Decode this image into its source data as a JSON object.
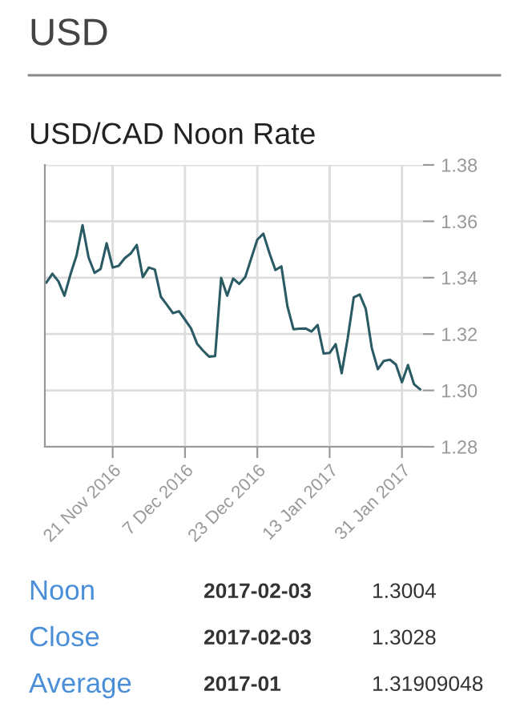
{
  "chart_data": {
    "type": "line",
    "title": "USD",
    "subtitle": "USD/CAD Noon Rate",
    "categories": [
      null,
      null,
      null,
      null,
      null,
      null,
      null,
      null,
      null,
      null,
      null,
      "21 Nov 2016",
      null,
      null,
      null,
      null,
      null,
      null,
      null,
      null,
      null,
      null,
      null,
      "7 Dec 2016",
      null,
      null,
      null,
      null,
      null,
      null,
      null,
      null,
      null,
      null,
      null,
      "23 Dec 2016",
      null,
      null,
      null,
      null,
      null,
      null,
      null,
      null,
      null,
      null,
      null,
      "13 Jan 2017",
      null,
      null,
      null,
      null,
      null,
      null,
      null,
      null,
      null,
      null,
      null,
      "31 Jan 2017",
      null,
      null,
      null
    ],
    "series": [
      {
        "color": "#2a5a63",
        "values": [
          1.3383,
          1.3414,
          1.3387,
          1.3336,
          1.3412,
          1.3478,
          1.3586,
          1.3472,
          1.3417,
          1.3431,
          1.3522,
          1.3436,
          1.3442,
          1.3469,
          1.3486,
          1.3516,
          1.3402,
          1.3436,
          1.3429,
          1.3332,
          1.3304,
          1.3274,
          1.3281,
          1.3251,
          1.322,
          1.3166,
          1.3141,
          1.312,
          1.3122,
          1.3399,
          1.3336,
          1.3397,
          1.3378,
          1.3402,
          1.3469,
          1.3535,
          1.3556,
          1.3488,
          1.3427,
          1.344,
          1.3298,
          1.3217,
          1.3219,
          1.322,
          1.3209,
          1.3232,
          1.3131,
          1.3133,
          1.3164,
          1.3061,
          1.3185,
          1.333,
          1.334,
          1.3289,
          1.315,
          1.3075,
          1.3105,
          1.3109,
          1.3092,
          1.3029,
          1.309,
          1.3022,
          1.3004
        ]
      }
    ],
    "ylim": [
      1.28,
      1.38
    ],
    "yticks": [
      1.28,
      {
        "value": 1.3,
        "label": "1.30"
      },
      1.32,
      1.34,
      1.36,
      1.38
    ],
    "grid": true,
    "legend": false,
    "marker": "none",
    "line_style": "solid",
    "annotations": [
      "Noon",
      "2017-02-03",
      "1.3004",
      "Close",
      "2017-02-03",
      "1.3028",
      "Average",
      "2017-01",
      "1.31909048"
    ]
  }
}
